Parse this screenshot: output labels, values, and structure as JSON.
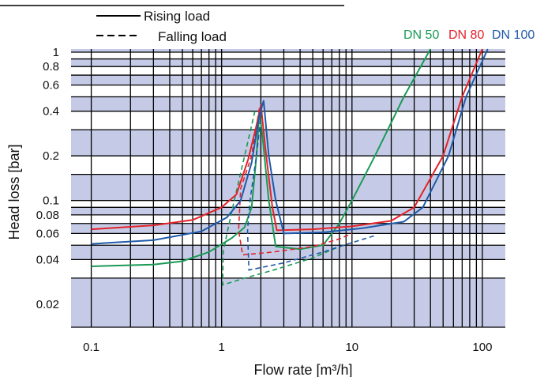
{
  "chart_data": {
    "type": "line",
    "xlabel": "Flow rate [m³/h]",
    "ylabel": "Head loss [bar]",
    "xscale": "log",
    "yscale": "log",
    "xlim": [
      0.07,
      150
    ],
    "ylim": [
      0.014,
      1.05
    ],
    "grid": true,
    "x_ticks": [
      {
        "value": 0.1,
        "label": "0.1"
      },
      {
        "value": 1,
        "label": "1"
      },
      {
        "value": 10,
        "label": "10"
      },
      {
        "value": 100,
        "label": "100"
      }
    ],
    "y_ticks": [
      {
        "value": 0.02,
        "label": "0.02"
      },
      {
        "value": 0.04,
        "label": "0.04"
      },
      {
        "value": 0.06,
        "label": "0.06"
      },
      {
        "value": 0.08,
        "label": "0.08"
      },
      {
        "value": 0.1,
        "label": "0.1"
      },
      {
        "value": 0.2,
        "label": "0.2"
      },
      {
        "value": 0.4,
        "label": "0.4"
      },
      {
        "value": 0.6,
        "label": "0.6"
      },
      {
        "value": 0.8,
        "label": "0.8"
      },
      {
        "value": 1,
        "label": "1"
      }
    ],
    "style_legend": [
      {
        "label": "Rising load",
        "dash": "solid"
      },
      {
        "label": "Falling load",
        "dash": "dashed"
      }
    ],
    "series_legend_position": "top-right",
    "band_color": "#c5cbe6",
    "series": [
      {
        "name": "DN 50",
        "color": "#1a9a55",
        "rising": [
          [
            0.1,
            0.036
          ],
          [
            0.3,
            0.037
          ],
          [
            0.5,
            0.039
          ],
          [
            0.8,
            0.045
          ],
          [
            1.2,
            0.056
          ],
          [
            1.5,
            0.066
          ],
          [
            1.7,
            0.09
          ],
          [
            1.85,
            0.2
          ],
          [
            1.95,
            0.4
          ],
          [
            2.05,
            0.28
          ],
          [
            2.3,
            0.1
          ],
          [
            2.6,
            0.049
          ],
          [
            4,
            0.047
          ],
          [
            6,
            0.05
          ],
          [
            8,
            0.07
          ],
          [
            10,
            0.1
          ],
          [
            15,
            0.2
          ],
          [
            25,
            0.5
          ],
          [
            40,
            1.05
          ]
        ],
        "falling": [
          [
            1.8,
            0.4
          ],
          [
            1.5,
            0.2
          ],
          [
            1.25,
            0.1
          ],
          [
            1.1,
            0.06
          ],
          [
            1.03,
            0.045
          ],
          [
            1.02,
            0.027
          ],
          [
            1.5,
            0.03
          ],
          [
            2.5,
            0.034
          ],
          [
            5,
            0.041
          ],
          [
            8,
            0.049
          ]
        ]
      },
      {
        "name": "DN 80",
        "color": "#e2232a",
        "rising": [
          [
            0.1,
            0.064
          ],
          [
            0.3,
            0.068
          ],
          [
            0.6,
            0.074
          ],
          [
            1,
            0.09
          ],
          [
            1.3,
            0.11
          ],
          [
            1.6,
            0.19
          ],
          [
            1.85,
            0.32
          ],
          [
            2,
            0.44
          ],
          [
            2.2,
            0.2
          ],
          [
            2.45,
            0.09
          ],
          [
            2.65,
            0.063
          ],
          [
            5,
            0.064
          ],
          [
            10,
            0.067
          ],
          [
            20,
            0.073
          ],
          [
            30,
            0.09
          ],
          [
            50,
            0.2
          ],
          [
            70,
            0.5
          ],
          [
            100,
            1.05
          ]
        ],
        "falling": [
          [
            1.95,
            0.42
          ],
          [
            1.7,
            0.2
          ],
          [
            1.4,
            0.12
          ],
          [
            1.35,
            0.063
          ],
          [
            1.45,
            0.043
          ],
          [
            2.5,
            0.045
          ],
          [
            5,
            0.049
          ],
          [
            8,
            0.055
          ],
          [
            10,
            0.06
          ]
        ]
      },
      {
        "name": "DN 100",
        "color": "#1f5aa9",
        "rising": [
          [
            0.1,
            0.051
          ],
          [
            0.3,
            0.054
          ],
          [
            0.7,
            0.062
          ],
          [
            1.1,
            0.077
          ],
          [
            1.4,
            0.1
          ],
          [
            1.7,
            0.18
          ],
          [
            1.95,
            0.38
          ],
          [
            2.1,
            0.47
          ],
          [
            2.3,
            0.2
          ],
          [
            2.6,
            0.1
          ],
          [
            3,
            0.06
          ],
          [
            6,
            0.061
          ],
          [
            12,
            0.065
          ],
          [
            25,
            0.072
          ],
          [
            35,
            0.09
          ],
          [
            55,
            0.2
          ],
          [
            75,
            0.5
          ],
          [
            110,
            1.05
          ]
        ],
        "falling": [
          [
            2.05,
            0.45
          ],
          [
            1.85,
            0.2
          ],
          [
            1.65,
            0.1
          ],
          [
            1.58,
            0.062
          ],
          [
            1.62,
            0.034
          ],
          [
            3,
            0.038
          ],
          [
            6,
            0.045
          ],
          [
            10,
            0.052
          ],
          [
            15,
            0.058
          ]
        ]
      }
    ]
  }
}
